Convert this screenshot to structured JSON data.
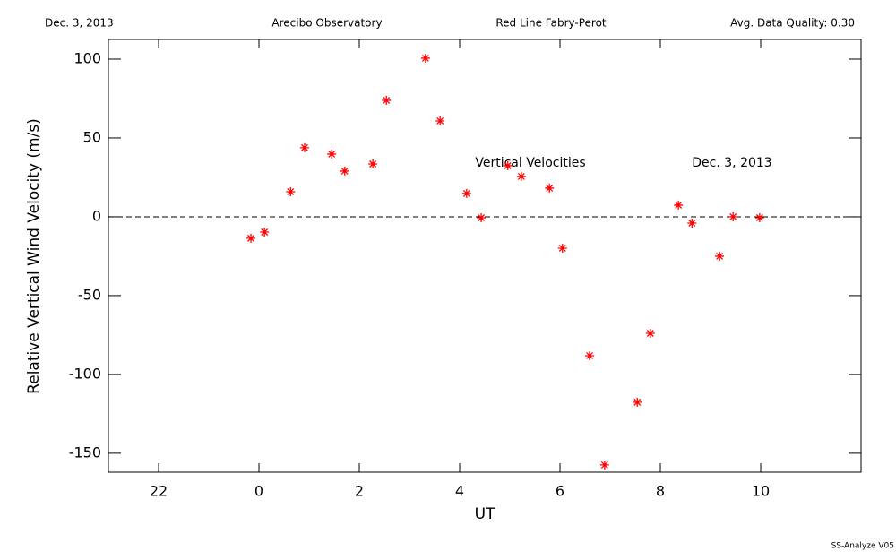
{
  "chart_data": {
    "type": "scatter",
    "date": "Dec. 3, 2013",
    "site": "Arecibo Observatory",
    "instrument": "Red Line Fabry-Perot",
    "quality": "Avg. Data Quality: 0.30",
    "annotations": [
      "Vertical Velocities",
      "Dec. 3, 2013"
    ],
    "footer": "SS-Analyze V05",
    "x_label": "UT",
    "y_label": "Relative Vertical Wind Velocity (m/s)",
    "xlim": [
      -3,
      12
    ],
    "ylim": [
      -162,
      112.5
    ],
    "xticks": [
      {
        "value": -2,
        "label": "22"
      },
      0,
      2,
      4,
      6,
      8,
      10
    ],
    "yticks": [
      -150,
      -100,
      -50,
      0,
      50,
      100
    ],
    "reference_line": 0,
    "series": [
      {
        "color": "#ff0000",
        "x": [
          -0.16,
          0.11,
          0.63,
          0.91,
          1.45,
          1.71,
          2.27,
          2.54,
          3.32,
          3.61,
          4.14,
          4.43,
          4.96,
          5.23,
          5.79,
          6.05,
          6.59,
          6.89,
          7.54,
          7.8,
          8.36,
          8.63,
          9.18,
          9.45,
          9.98
        ],
        "values": [
          -13.6,
          -9.7,
          15.9,
          43.8,
          39.8,
          29.0,
          33.5,
          73.9,
          100.6,
          60.8,
          14.8,
          -0.6,
          32.4,
          25.6,
          18.2,
          -19.9,
          -88.1,
          -157.4,
          -117.6,
          -73.9,
          7.4,
          -4.0,
          -25.0,
          0,
          -0.6
        ]
      }
    ]
  }
}
